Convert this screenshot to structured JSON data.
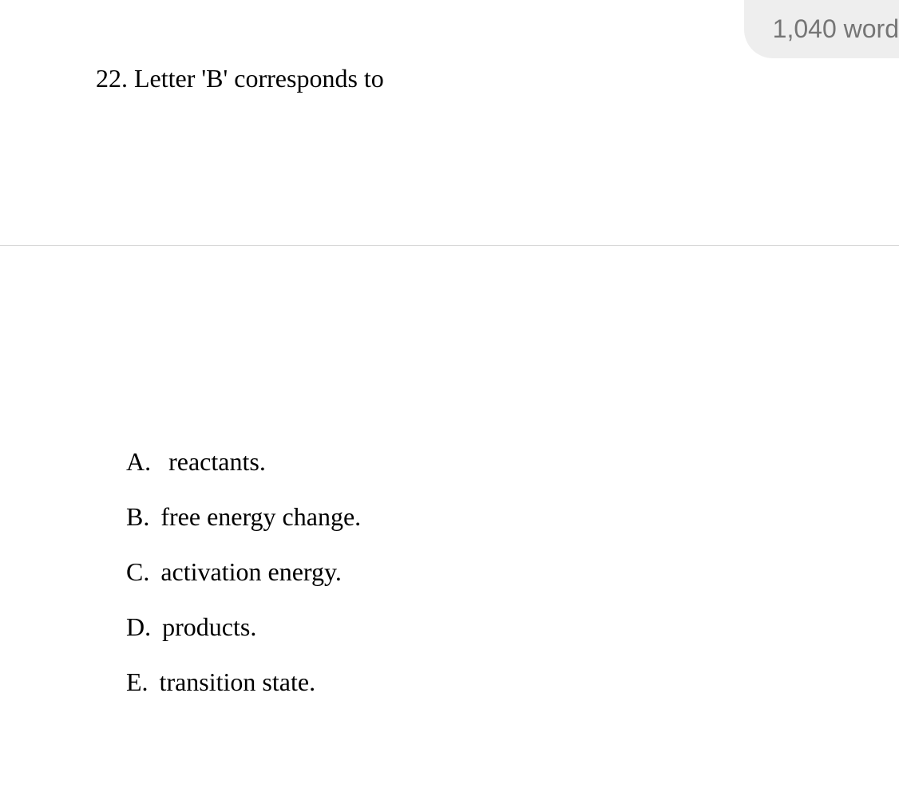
{
  "header": {
    "word_count_label": "1,040 word"
  },
  "question": {
    "number": "22.",
    "text": "Letter 'B' corresponds to"
  },
  "options": [
    {
      "letter": "A.",
      "text": "reactants."
    },
    {
      "letter": "B.",
      "text": "free energy change."
    },
    {
      "letter": "C.",
      "text": "activation energy."
    },
    {
      "letter": "D.",
      "text": "products."
    },
    {
      "letter": "E.",
      "text": "transition state."
    }
  ],
  "styling": {
    "body_bg": "#ffffff",
    "badge_bg": "#eeeeee",
    "badge_text_color": "#757575",
    "text_color": "#000000",
    "divider_color": "#d8d8d8",
    "question_font_size": 32,
    "option_font_size": 32,
    "badge_font_size": 32
  }
}
